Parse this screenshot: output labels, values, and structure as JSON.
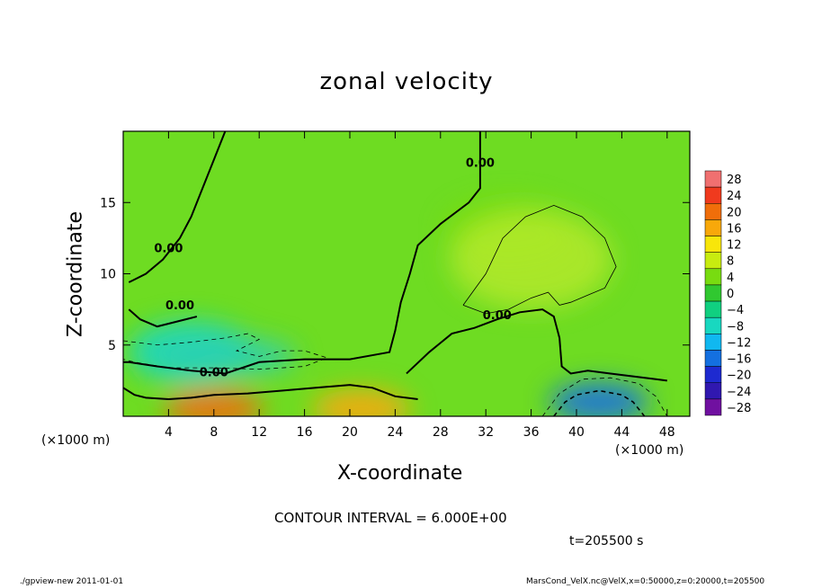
{
  "chart_data": {
    "type": "heatmap",
    "title": "zonal velocity",
    "xlabel": "X-coordinate",
    "ylabel": "Z-coordinate",
    "x_unit_label": "(×1000 m)",
    "xlim": [
      0,
      50
    ],
    "ylim": [
      0,
      20
    ],
    "x_ticks": [
      4,
      8,
      12,
      16,
      20,
      24,
      28,
      32,
      36,
      40,
      44,
      48
    ],
    "y_ticks": [
      5,
      10,
      15
    ],
    "colorbar_levels": [
      28,
      24,
      20,
      16,
      12,
      8,
      4,
      0,
      -4,
      -8,
      -12,
      -16,
      -20,
      -24,
      -28
    ],
    "colorbar_colors": [
      "#f07070",
      "#f03a1e",
      "#f06e0a",
      "#f8a80a",
      "#f8e60a",
      "#c8ec10",
      "#78dc10",
      "#30c830",
      "#10d080",
      "#18d8c0",
      "#10b8f0",
      "#1470e0",
      "#1e2ad0",
      "#3018b0",
      "#7010a0"
    ],
    "contour_interval": "CONTOUR INTERVAL = 6.000E+00",
    "contour_labels": [
      "0.00",
      "0.00",
      "0.00",
      "0.00",
      "0.00"
    ],
    "features": [
      {
        "kind": "max",
        "x": 8,
        "z": 0.5,
        "value": 20
      },
      {
        "kind": "max",
        "x": 21,
        "z": 0.5,
        "value": 16
      },
      {
        "kind": "min",
        "x": 42,
        "z": 1,
        "value": -16
      },
      {
        "kind": "max",
        "x": 34,
        "z": 13,
        "value": 7
      },
      {
        "kind": "min",
        "x": 6,
        "z": 4.5,
        "value": -8
      }
    ]
  },
  "time_label": "t=205500  s",
  "footer_left": "./gpview-new   2011-01-01",
  "footer_right": "MarsCond_VelX.nc@VelX,x=0:50000,z=0:20000,t=205500"
}
